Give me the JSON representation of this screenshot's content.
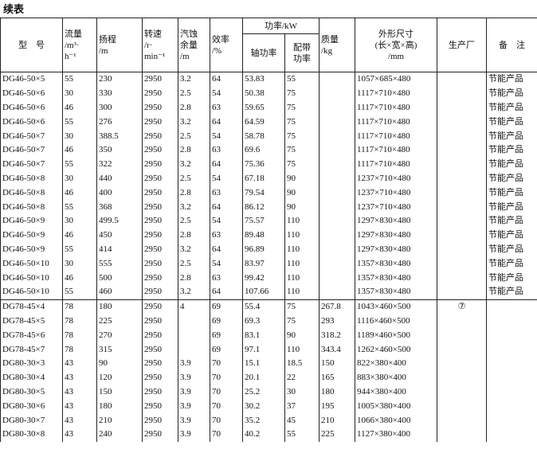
{
  "title": "续表",
  "table": {
    "header": {
      "model": "型　号",
      "flow": "流量\n/m³·\nh⁻¹",
      "head": "扬程\n/m",
      "speed": "转速\n/r·\nmin⁻¹",
      "npsh": "汽蚀\n余量\n/m",
      "efficiency": "效率\n/%",
      "power": "功率/kW",
      "shaft_power": "轴功率",
      "motor_power": "配带\n功率",
      "mass": "质量\n/kg",
      "dimensions": "外形尺寸\n(长×宽×高)\n/mm",
      "manufacturer": "生产厂",
      "remark": "备　注"
    },
    "groups": [
      {
        "rows": [
          [
            "DG46-50×5",
            "55",
            "230",
            "2950",
            "3.2",
            "64",
            "53.83",
            "55",
            null,
            "1057×685×480",
            null,
            "节能产品"
          ],
          [
            "DG46-50×6",
            "30",
            "330",
            "2950",
            "2.5",
            "54",
            "50.38",
            "75",
            null,
            "1117×710×480",
            null,
            "节能产品"
          ],
          [
            "DG46-50×6",
            "46",
            "300",
            "2950",
            "2.8",
            "63",
            "59.65",
            "75",
            null,
            "1117×710×480",
            null,
            "节能产品"
          ],
          [
            "DG46-50×6",
            "55",
            "276",
            "2950",
            "3.2",
            "64",
            "64.59",
            "75",
            null,
            "1117×710×480",
            null,
            "节能产品"
          ],
          [
            "DG46-50×7",
            "30",
            "388.5",
            "2950",
            "2.5",
            "54",
            "58.78",
            "75",
            null,
            "1117×710×480",
            null,
            "节能产品"
          ],
          [
            "DG46-50×7",
            "46",
            "350",
            "2950",
            "2.8",
            "63",
            "69.6",
            "75",
            null,
            "1117×710×480",
            null,
            "节能产品"
          ],
          [
            "DG46-50×7",
            "55",
            "322",
            "2950",
            "3.2",
            "64",
            "75.36",
            "75",
            null,
            "1117×710×480",
            null,
            "节能产品"
          ],
          [
            "DG46-50×8",
            "30",
            "440",
            "2950",
            "2.5",
            "54",
            "67.18",
            "90",
            null,
            "1237×710×480",
            null,
            "节能产品"
          ],
          [
            "DG46-50×8",
            "46",
            "400",
            "2950",
            "2.8",
            "63",
            "79.54",
            "90",
            null,
            "1237×710×480",
            null,
            "节能产品"
          ],
          [
            "DG46-50×8",
            "55",
            "368",
            "2950",
            "3.2",
            "64",
            "86.12",
            "90",
            null,
            "1237×710×480",
            null,
            "节能产品"
          ],
          [
            "DG46-50×9",
            "30",
            "499.5",
            "2950",
            "2.5",
            "54",
            "75.57",
            "110",
            null,
            "1297×830×480",
            null,
            "节能产品"
          ],
          [
            "DG46-50×9",
            "46",
            "450",
            "2950",
            "2.8",
            "63",
            "89.48",
            "110",
            null,
            "1297×830×480",
            null,
            "节能产品"
          ],
          [
            "DG46-50×9",
            "55",
            "414",
            "2950",
            "3.2",
            "64",
            "96.89",
            "110",
            null,
            "1297×830×480",
            null,
            "节能产品"
          ],
          [
            "DG46-50×10",
            "30",
            "555",
            "2950",
            "2.5",
            "54",
            "83.97",
            "110",
            null,
            "1357×830×480",
            null,
            "节能产品"
          ],
          [
            "DG46-50×10",
            "46",
            "500",
            "2950",
            "2.8",
            "63",
            "99.42",
            "110",
            null,
            "1357×830×480",
            null,
            "节能产品"
          ],
          [
            "DG46-50×10",
            "55",
            "460",
            "2950",
            "3.2",
            "64",
            "107.66",
            "110",
            null,
            "1357×830×480",
            null,
            "节能产品"
          ]
        ]
      },
      {
        "rows": [
          [
            "DG78-45×4",
            "78",
            "180",
            "2950",
            "4",
            "69",
            "55.4",
            "75",
            "267.8",
            "1043×460×500",
            "⑦",
            null
          ],
          [
            "DG78-45×5",
            "78",
            "225",
            "2950",
            null,
            "69",
            "69.3",
            "75",
            "293",
            "1116×460×500",
            null,
            null
          ],
          [
            "DG78-45×6",
            "78",
            "270",
            "2950",
            null,
            "69",
            "83.1",
            "90",
            "318.2",
            "1189×460×500",
            null,
            null
          ],
          [
            "DG78-45×7",
            "78",
            "315",
            "2950",
            null,
            "69",
            "97.1",
            "110",
            "343.4",
            "1262×460×500",
            null,
            null
          ],
          [
            "DG80-30×3",
            "43",
            "90",
            "2950",
            "3.9",
            "70",
            "15.1",
            "18.5",
            "150",
            "822×380×400",
            null,
            null
          ],
          [
            "DG80-30×4",
            "43",
            "120",
            "2950",
            "3.9",
            "70",
            "20.1",
            "22",
            "165",
            "883×380×400",
            null,
            null
          ],
          [
            "DG80-30×5",
            "43",
            "150",
            "2950",
            "3.9",
            "70",
            "25.2",
            "30",
            "180",
            "944×380×400",
            null,
            null
          ],
          [
            "DG80-30×6",
            "43",
            "180",
            "2950",
            "3.9",
            "70",
            "30.2",
            "37",
            "195",
            "1005×380×400",
            null,
            null
          ],
          [
            "DG80-30×7",
            "43",
            "210",
            "2950",
            "3.9",
            "70",
            "35.2",
            "45",
            "210",
            "1066×380×400",
            null,
            null
          ],
          [
            "DG80-30×8",
            "43",
            "240",
            "2950",
            "3.9",
            "70",
            "40.2",
            "55",
            "225",
            "1127×380×400",
            null,
            null
          ]
        ]
      }
    ]
  }
}
